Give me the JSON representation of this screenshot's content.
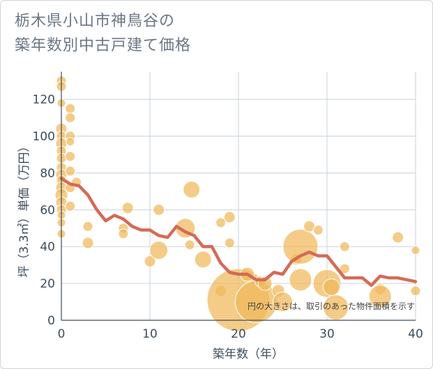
{
  "title_line1": "栃木県小山市神鳥谷の",
  "title_line2": "築年数別中古戸建て価格",
  "chart_data": {
    "type": "scatter",
    "title": "栃木県小山市神鳥谷の築年数別中古戸建て価格",
    "xlabel": "築年数（年）",
    "ylabel": "坪（3.3㎡）単価（万円）",
    "xlim": [
      0,
      40
    ],
    "ylim": [
      0,
      135
    ],
    "xticks": [
      0,
      10,
      20,
      30,
      40
    ],
    "yticks": [
      0,
      20,
      40,
      60,
      80,
      100,
      120
    ],
    "grid": true,
    "annotation": "円の大きさは、取引のあった物件面積を示す",
    "colors": {
      "bubble": "#f0b95a",
      "line": "#d46b55",
      "grid": "#c9d2dc"
    },
    "bubbles": [
      {
        "x": 0,
        "y": 130,
        "s": 7
      },
      {
        "x": 0,
        "y": 127,
        "s": 7
      },
      {
        "x": 0,
        "y": 118,
        "s": 6
      },
      {
        "x": 0,
        "y": 104,
        "s": 8
      },
      {
        "x": 0,
        "y": 100,
        "s": 7
      },
      {
        "x": 0,
        "y": 96,
        "s": 8
      },
      {
        "x": 0,
        "y": 92,
        "s": 7
      },
      {
        "x": 0,
        "y": 88,
        "s": 7
      },
      {
        "x": 0,
        "y": 83,
        "s": 7
      },
      {
        "x": 0,
        "y": 79,
        "s": 8
      },
      {
        "x": 0,
        "y": 76,
        "s": 7
      },
      {
        "x": 0,
        "y": 72,
        "s": 8
      },
      {
        "x": 0,
        "y": 68,
        "s": 9
      },
      {
        "x": 0,
        "y": 64,
        "s": 8
      },
      {
        "x": 0,
        "y": 60,
        "s": 7
      },
      {
        "x": 0,
        "y": 57,
        "s": 6
      },
      {
        "x": 0,
        "y": 53,
        "s": 6
      },
      {
        "x": 0,
        "y": 47,
        "s": 6
      },
      {
        "x": 1,
        "y": 115,
        "s": 7
      },
      {
        "x": 1,
        "y": 110,
        "s": 7
      },
      {
        "x": 1,
        "y": 100,
        "s": 7
      },
      {
        "x": 1,
        "y": 97,
        "s": 6
      },
      {
        "x": 1,
        "y": 89,
        "s": 7
      },
      {
        "x": 1,
        "y": 81,
        "s": 7
      },
      {
        "x": 1,
        "y": 72,
        "s": 7
      },
      {
        "x": 1,
        "y": 62,
        "s": 7
      },
      {
        "x": 1.7,
        "y": 75,
        "s": 7
      },
      {
        "x": 3,
        "y": 51,
        "s": 7
      },
      {
        "x": 3,
        "y": 42,
        "s": 8
      },
      {
        "x": 7,
        "y": 50,
        "s": 7
      },
      {
        "x": 7,
        "y": 47,
        "s": 7
      },
      {
        "x": 7.5,
        "y": 61,
        "s": 8
      },
      {
        "x": 10,
        "y": 32,
        "s": 8
      },
      {
        "x": 11,
        "y": 38,
        "s": 13
      },
      {
        "x": 11,
        "y": 60,
        "s": 8
      },
      {
        "x": 14,
        "y": 50,
        "s": 14
      },
      {
        "x": 14.5,
        "y": 41,
        "s": 7
      },
      {
        "x": 14.7,
        "y": 71,
        "s": 12
      },
      {
        "x": 16,
        "y": 33,
        "s": 12
      },
      {
        "x": 18,
        "y": 53,
        "s": 7
      },
      {
        "x": 19,
        "y": 56,
        "s": 8
      },
      {
        "x": 19,
        "y": 42,
        "s": 7
      },
      {
        "x": 18,
        "y": 16,
        "s": 8
      },
      {
        "x": 20,
        "y": 11,
        "s": 45
      },
      {
        "x": 21,
        "y": 25,
        "s": 10
      },
      {
        "x": 22,
        "y": 10,
        "s": 30
      },
      {
        "x": 22.5,
        "y": 21,
        "s": 8
      },
      {
        "x": 23,
        "y": 20,
        "s": 10
      },
      {
        "x": 24.5,
        "y": 16,
        "s": 9
      },
      {
        "x": 25,
        "y": 10,
        "s": 14
      },
      {
        "x": 26.5,
        "y": 33,
        "s": 8
      },
      {
        "x": 27,
        "y": 40,
        "s": 25
      },
      {
        "x": 27,
        "y": 22,
        "s": 16
      },
      {
        "x": 28,
        "y": 51,
        "s": 8
      },
      {
        "x": 29,
        "y": 49,
        "s": 7
      },
      {
        "x": 30,
        "y": 20,
        "s": 20
      },
      {
        "x": 30.5,
        "y": 18,
        "s": 12
      },
      {
        "x": 31,
        "y": 7,
        "s": 18
      },
      {
        "x": 32,
        "y": 40,
        "s": 7
      },
      {
        "x": 32,
        "y": 28,
        "s": 7
      },
      {
        "x": 36,
        "y": 17,
        "s": 8
      },
      {
        "x": 36,
        "y": 13,
        "s": 16
      },
      {
        "x": 38,
        "y": 45,
        "s": 8
      },
      {
        "x": 40,
        "y": 38,
        "s": 6
      },
      {
        "x": 40,
        "y": 16,
        "s": 7
      }
    ],
    "line": [
      {
        "x": 0,
        "y": 77
      },
      {
        "x": 1,
        "y": 74
      },
      {
        "x": 2,
        "y": 73
      },
      {
        "x": 3,
        "y": 68
      },
      {
        "x": 4,
        "y": 60
      },
      {
        "x": 5,
        "y": 54
      },
      {
        "x": 6,
        "y": 57
      },
      {
        "x": 7,
        "y": 55
      },
      {
        "x": 8,
        "y": 51
      },
      {
        "x": 9,
        "y": 49
      },
      {
        "x": 10,
        "y": 49
      },
      {
        "x": 11,
        "y": 46
      },
      {
        "x": 12,
        "y": 45
      },
      {
        "x": 13,
        "y": 51
      },
      {
        "x": 14,
        "y": 48
      },
      {
        "x": 15,
        "y": 46
      },
      {
        "x": 16,
        "y": 40
      },
      {
        "x": 17,
        "y": 40
      },
      {
        "x": 18,
        "y": 31
      },
      {
        "x": 19,
        "y": 26
      },
      {
        "x": 20,
        "y": 25
      },
      {
        "x": 21,
        "y": 25
      },
      {
        "x": 22,
        "y": 22
      },
      {
        "x": 23,
        "y": 22
      },
      {
        "x": 24,
        "y": 26
      },
      {
        "x": 25,
        "y": 25
      },
      {
        "x": 26,
        "y": 32
      },
      {
        "x": 27,
        "y": 35
      },
      {
        "x": 28,
        "y": 37
      },
      {
        "x": 29,
        "y": 35
      },
      {
        "x": 30,
        "y": 35
      },
      {
        "x": 31,
        "y": 29
      },
      {
        "x": 32,
        "y": 23
      },
      {
        "x": 33,
        "y": 23
      },
      {
        "x": 34,
        "y": 23
      },
      {
        "x": 35,
        "y": 19
      },
      {
        "x": 36,
        "y": 24
      },
      {
        "x": 37,
        "y": 23
      },
      {
        "x": 38,
        "y": 23
      },
      {
        "x": 39,
        "y": 22
      },
      {
        "x": 40,
        "y": 21
      }
    ]
  }
}
